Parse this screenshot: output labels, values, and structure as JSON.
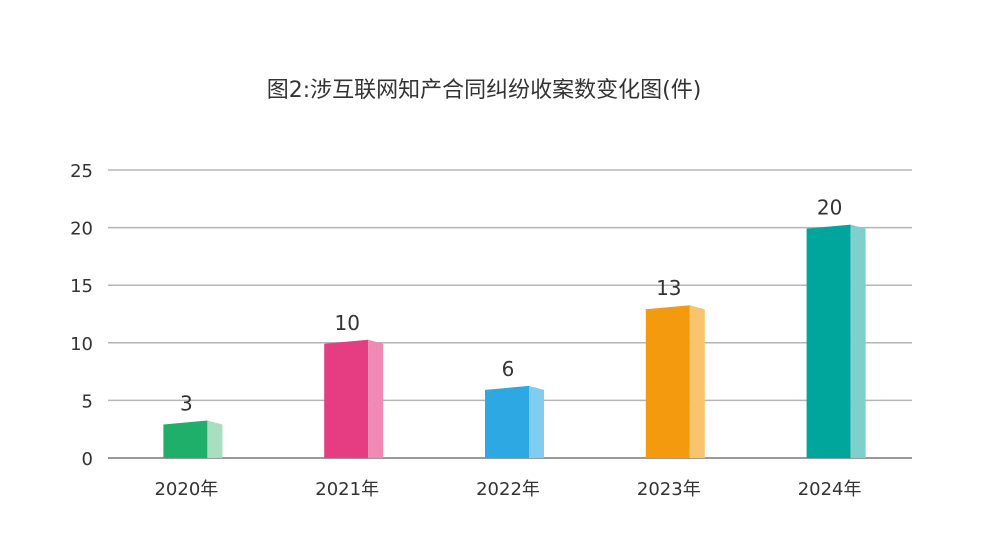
{
  "chart_data": {
    "type": "bar",
    "title": "图2:涉互联网知产合同纠纷收案数变化图(件)",
    "xlabel": "",
    "ylabel": "",
    "categories": [
      "2020年",
      "2021年",
      "2022年",
      "2023年",
      "2024年"
    ],
    "values": [
      3,
      10,
      6,
      13,
      20
    ],
    "ylim": [
      0,
      25
    ],
    "yticks": [
      0,
      5,
      10,
      15,
      20,
      25
    ],
    "grid": true,
    "legend": "none",
    "data_labels": true,
    "colors": [
      {
        "front": "#1faf6b",
        "side": "#a9dfc1"
      },
      {
        "front": "#e63c82",
        "side": "#f08ab5"
      },
      {
        "front": "#2ea8e3",
        "side": "#7fcdf1"
      },
      {
        "front": "#f39a0e",
        "side": "#f8c56e"
      },
      {
        "front": "#00a69c",
        "side": "#7fcfca"
      }
    ]
  }
}
